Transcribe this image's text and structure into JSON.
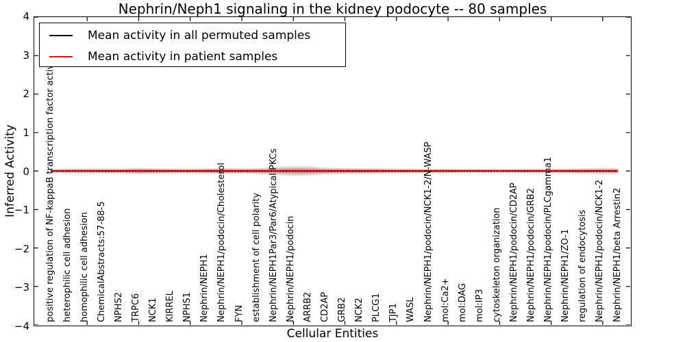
{
  "title": "Nephrin/Neph1 signaling in the kidney podocyte -- 80 samples",
  "axes": {
    "xlabel": "Cellular Entities",
    "ylabel": "Inferred Activity",
    "ytick_labels": [
      "4",
      "3",
      "2",
      "1",
      "0",
      "−1",
      "−2",
      "−3",
      "−4"
    ],
    "ylim": [
      -4,
      4
    ]
  },
  "legend": {
    "items": [
      {
        "label": "Mean activity in all permuted samples",
        "color": "#000000"
      },
      {
        "label": "Mean activity in patient samples",
        "color": "#ff0000"
      }
    ]
  },
  "chart_data": {
    "type": "line",
    "title": "Nephrin/Neph1 signaling in the kidney podocyte -- 80 samples",
    "xlabel": "Cellular Entities",
    "ylabel": "Inferred Activity",
    "ylim": [
      -4,
      4
    ],
    "grid": false,
    "legend_position": "upper left",
    "categories": [
      "positive regulation of NF-kappaB transcription factor activity",
      "heterophilic cell adhesion",
      "homophilic cell adhesion",
      "ChemicalAbstracts:57-88-5",
      "NPHS2",
      "TRPC6",
      "NCK1",
      "KIRREL",
      "NPHS1",
      "Nephrin/NEPH1",
      "Nephrin/NEPH1/podocin/Cholesterol",
      "FYN",
      "establishment of cell polarity",
      "Nephrin/NEPH1Par3/Par6/Atypical PKCs",
      "Nephrin/NEPH1/podocin",
      "ARRB2",
      "CD2AP",
      "GRB2",
      "NCK2",
      "PLCG1",
      "TJP1",
      "WASL",
      "Nephrin/NEPH1/podocin/NCK1-2/N-WASP",
      "mol:Ca2+",
      "mol:DAG",
      "mol:IP3",
      "cytoskeleton organization",
      "Nephrin/NEPH1/podocin/CD2AP",
      "Nephrin/NEPH1/podocin/GRB2",
      "Nephrin/NEPH1/podocin/PLCgamma1",
      "Nephrin/NEPH1/ZO-1",
      "regulation of endocytosis",
      "Nephrin/NEPH1/podocin/NCK1-2",
      "Nephrin/NEPH1/beta Arrestin2"
    ],
    "series": [
      {
        "name": "Mean activity in all permuted samples",
        "color": "#000000",
        "style": "dotted",
        "values": [
          0,
          0,
          0,
          0,
          0,
          0,
          0,
          0,
          0,
          0,
          0,
          0,
          0,
          0,
          0,
          0,
          0,
          0,
          0,
          0,
          0,
          0,
          0,
          0,
          0,
          0,
          0,
          0,
          0,
          0,
          0,
          0,
          0,
          0
        ]
      },
      {
        "name": "Mean activity in patient samples",
        "color": "#ff0000",
        "style": "solid",
        "values": [
          0,
          0,
          0,
          0,
          0,
          0,
          0,
          0,
          0,
          0,
          0,
          0,
          0,
          0,
          0,
          0,
          0,
          0,
          0,
          0,
          0,
          0,
          0,
          0,
          0,
          0,
          0,
          0,
          0,
          0,
          0,
          0,
          0,
          0
        ]
      }
    ],
    "gray_band_halfwidth_estimate": [
      0.04,
      0.06,
      0.06,
      0.05,
      0.05,
      0.07,
      0.06,
      0.05,
      0.05,
      0.06,
      0.06,
      0.05,
      0.06,
      0.1,
      0.12,
      0.11,
      0.08,
      0.06,
      0.06,
      0.05,
      0.05,
      0.04,
      0.04,
      0.04,
      0.04,
      0.04,
      0.04,
      0.04,
      0.05,
      0.05,
      0.05,
      0.06,
      0.07,
      0.07
    ],
    "red_band_halfwidth_estimate": [
      0.02,
      0.03,
      0.03,
      0.04,
      0.04,
      0.05,
      0.05,
      0.04,
      0.04,
      0.04,
      0.05,
      0.05,
      0.05,
      0.05,
      0.06,
      0.06,
      0.05,
      0.05,
      0.05,
      0.05,
      0.04,
      0.04,
      0.04,
      0.04,
      0.03,
      0.03,
      0.03,
      0.03,
      0.03,
      0.03,
      0.04,
      0.04,
      0.04,
      0.04
    ]
  }
}
